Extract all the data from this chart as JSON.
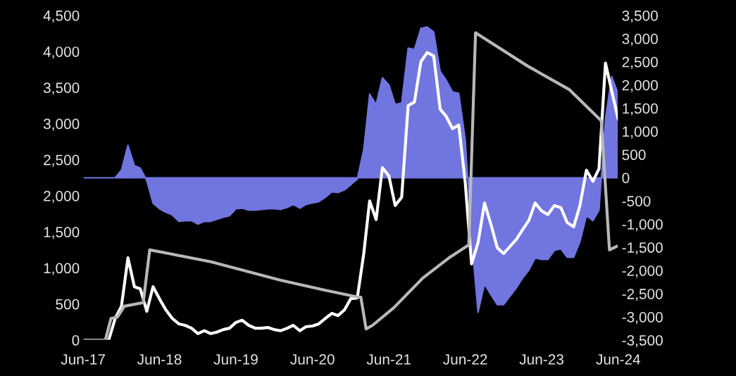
{
  "chart_data": {
    "type": "line",
    "grid": false,
    "legend": false,
    "marker": "none",
    "line_style": "solid",
    "x": [
      "2017-06",
      "2017-07",
      "2017-08",
      "2017-09",
      "2017-10",
      "2017-11",
      "2017-12",
      "2018-01",
      "2018-02",
      "2018-03",
      "2018-04",
      "2018-05",
      "2018-06",
      "2018-07",
      "2018-08",
      "2018-09",
      "2018-10",
      "2018-11",
      "2018-12",
      "2019-01",
      "2019-02",
      "2019-03",
      "2019-04",
      "2019-05",
      "2019-06",
      "2019-07",
      "2019-08",
      "2019-09",
      "2019-10",
      "2019-11",
      "2019-12",
      "2020-01",
      "2020-02",
      "2020-03",
      "2020-04",
      "2020-05",
      "2020-06",
      "2020-07",
      "2020-08",
      "2020-09",
      "2020-10",
      "2020-11",
      "2020-12",
      "2021-01",
      "2021-02",
      "2021-03",
      "2021-04",
      "2021-05",
      "2021-06",
      "2021-07",
      "2021-08",
      "2021-09",
      "2021-10",
      "2021-11",
      "2021-12",
      "2022-01",
      "2022-02",
      "2022-03",
      "2022-04",
      "2022-05",
      "2022-06",
      "2022-07",
      "2022-08",
      "2022-09",
      "2022-10",
      "2022-11",
      "2022-12",
      "2023-01",
      "2023-02",
      "2023-03",
      "2023-04",
      "2023-05",
      "2023-06",
      "2023-07",
      "2023-08",
      "2023-09",
      "2023-10",
      "2023-11",
      "2023-12",
      "2024-01",
      "2024-02",
      "2024-03",
      "2024-04",
      "2024-05",
      "2024-06"
    ],
    "xlim": [
      "2017-06",
      "2024-06"
    ],
    "xticks": [
      {
        "value": "2017-06",
        "label": "Jun-17"
      },
      {
        "value": "2018-06",
        "label": "Jun-18"
      },
      {
        "value": "2019-06",
        "label": "Jun-19"
      },
      {
        "value": "2020-06",
        "label": "Jun-20"
      },
      {
        "value": "2021-06",
        "label": "Jun-21"
      },
      {
        "value": "2022-06",
        "label": "Jun-22"
      },
      {
        "value": "2023-06",
        "label": "Jun-23"
      },
      {
        "value": "2024-06",
        "label": "Jun-24"
      }
    ],
    "ylim": [
      0,
      4500
    ],
    "yticks": [
      {
        "value": 0,
        "label": "0"
      },
      {
        "value": 500,
        "label": "500"
      },
      {
        "value": 1000,
        "label": "1,000"
      },
      {
        "value": 1500,
        "label": "1,500"
      },
      {
        "value": 2000,
        "label": "2,000"
      },
      {
        "value": 2500,
        "label": "2,500"
      },
      {
        "value": 3000,
        "label": "3,000"
      },
      {
        "value": 3500,
        "label": "3,500"
      },
      {
        "value": 4000,
        "label": "4,000"
      },
      {
        "value": 4500,
        "label": "4,500"
      }
    ],
    "y2lim": [
      -3500,
      3500
    ],
    "y2ticks": [
      {
        "value": -3500,
        "label": "-3,500"
      },
      {
        "value": -3000,
        "label": "-3,000"
      },
      {
        "value": -2500,
        "label": "-2,500"
      },
      {
        "value": -2000,
        "label": "-2,000"
      },
      {
        "value": -1500,
        "label": "-1,500"
      },
      {
        "value": -1000,
        "label": "-1,000"
      },
      {
        "value": -500,
        "label": "-500"
      },
      {
        "value": 0,
        "label": "0"
      },
      {
        "value": 500,
        "label": "500"
      },
      {
        "value": 1000,
        "label": "1,000"
      },
      {
        "value": 1500,
        "label": "1,500"
      },
      {
        "value": 2000,
        "label": "2,000"
      },
      {
        "value": 2500,
        "label": "2,500"
      },
      {
        "value": 3000,
        "label": "3,000"
      },
      {
        "value": 3500,
        "label": "3,500"
      }
    ],
    "series": [
      {
        "type": "area",
        "axis": "y2",
        "color": "#7175e0",
        "values": [
          0,
          0,
          0,
          0,
          0,
          0,
          165,
          700,
          260,
          210,
          -60,
          -550,
          -670,
          -745,
          -800,
          -940,
          -925,
          -925,
          -1000,
          -940,
          -940,
          -895,
          -850,
          -820,
          -670,
          -655,
          -700,
          -700,
          -685,
          -670,
          -670,
          -685,
          -640,
          -575,
          -655,
          -575,
          -545,
          -515,
          -425,
          -305,
          -320,
          -260,
          -150,
          -30,
          620,
          1805,
          1580,
          2155,
          2005,
          1580,
          1610,
          2795,
          2765,
          3220,
          3250,
          3145,
          2295,
          2110,
          1850,
          1820,
          820,
          -1305,
          -2900,
          -2290,
          -2520,
          -2735,
          -2735,
          -2550,
          -2370,
          -2170,
          -1990,
          -1730,
          -1760,
          -1760,
          -1565,
          -1535,
          -1715,
          -1715,
          -1380,
          -820,
          -925,
          -700,
          1275,
          2185,
          1805
        ]
      },
      {
        "color": "#ffffff",
        "values": [
          0,
          0,
          0,
          0,
          0,
          300,
          470,
          1140,
          740,
          710,
          400,
          740,
          570,
          420,
          300,
          225,
          205,
          165,
          90,
          130,
          90,
          110,
          145,
          165,
          245,
          275,
          205,
          165,
          165,
          175,
          145,
          130,
          165,
          205,
          130,
          185,
          195,
          225,
          300,
          370,
          340,
          420,
          575,
          585,
          1200,
          1930,
          1670,
          2390,
          2275,
          1865,
          1980,
          3250,
          3300,
          3860,
          3985,
          3940,
          3200,
          3105,
          2930,
          2980,
          2180,
          1055,
          1350,
          1900,
          1610,
          1280,
          1200,
          1300,
          1400,
          1525,
          1660,
          1900,
          1790,
          1740,
          1865,
          1835,
          1630,
          1570,
          1865,
          2355,
          2200,
          2375,
          3840,
          3450,
          3060
        ]
      },
      {
        "color": "#b8b8b8",
        "x": [
          "2017-06-01",
          "2017-09-15",
          "2017-10-12",
          "2017-11-12",
          "2017-12-15",
          "2018-03-15",
          "2018-04-15",
          "2018-07-15",
          "2019-02-01",
          "2020-01-01",
          "2020-07-25",
          "2021-01-05",
          "2021-01-18",
          "2021-02-12",
          "2021-03-15",
          "2021-06-25",
          "2021-11-10",
          "2022-03-20",
          "2022-06-18",
          "2022-07-20",
          "2023-03-25",
          "2023-10-12",
          "2024-03-12",
          "2024-04-20",
          "2024-05-25"
        ],
        "values": [
          0,
          0,
          300,
          320,
          470,
          520,
          1250,
          1200,
          1085,
          830,
          695,
          595,
          595,
          155,
          205,
          450,
          860,
          1150,
          1320,
          4260,
          3800,
          3470,
          3040,
          1250,
          1300
        ]
      }
    ]
  }
}
